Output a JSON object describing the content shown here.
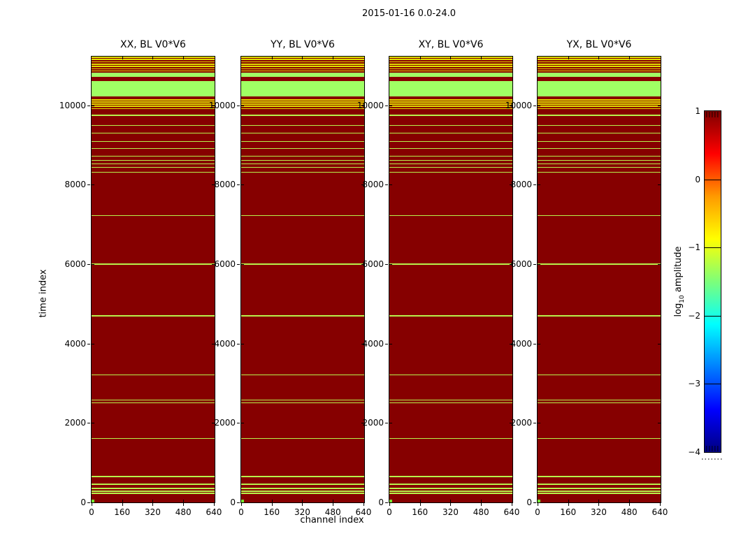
{
  "figure": {
    "title": "2015-01-16 0.0-24.0",
    "xlabel": "channel index",
    "ylabel": "time index"
  },
  "panels": [
    {
      "title": "XX, BL V0*V6"
    },
    {
      "title": "YY, BL V0*V6"
    },
    {
      "title": "XY, BL V0*V6"
    },
    {
      "title": "YX, BL V0*V6"
    }
  ],
  "colorbar": {
    "label_main": "log",
    "label_sub": "10",
    "label_rest": " amplitude"
  },
  "axes": {
    "x_tick_labels": [
      "0",
      "160",
      "320",
      "480",
      "640"
    ],
    "y_tick_labels": [
      "10000",
      "8000",
      "6000",
      "4000",
      "2000",
      "0"
    ],
    "cb_tick_labels": [
      "1",
      "0",
      "−1",
      "−2",
      "−3",
      "−4"
    ]
  },
  "chart_data": {
    "type": "heatmap",
    "title": "2015-01-16 0.0-24.0",
    "xlabel": "channel index",
    "ylabel": "time index",
    "xlim": [
      0,
      644
    ],
    "ylim": [
      0,
      11228
    ],
    "x_ticks": [
      0,
      160,
      320,
      480,
      640
    ],
    "y_ticks": [
      10000,
      8000,
      6000,
      4000,
      2000,
      0
    ],
    "colormap": "jet",
    "colorbar": {
      "label": "log10 amplitude",
      "ticks": [
        1,
        0,
        -1,
        -2,
        -3,
        -4
      ],
      "range": [
        -4,
        1
      ]
    },
    "panel_titles": [
      "XX, BL V0*V6",
      "YY, BL V0*V6",
      "XY, BL V0*V6",
      "YX, BL V0*V6"
    ],
    "note": "All four polarization panels show an identical pattern: saturated high amplitude (log10 amp ~1, dark red) across all 644 channels, broken by narrow low-amplitude horizontal time stripes listed below as [t_start, t_end, colorKey].",
    "colors": {
      "bg": "#860000",
      "y": "#dede00",
      "g": "#a0ff64",
      "l": "#b7f24c",
      "corner": "#76e232"
    },
    "stripes": [
      [
        11198,
        11228,
        "y"
      ],
      [
        11140,
        11170,
        "y"
      ],
      [
        11082,
        11112,
        "y"
      ],
      [
        11024,
        11054,
        "y"
      ],
      [
        10966,
        10996,
        "y"
      ],
      [
        10908,
        10938,
        "y"
      ],
      [
        10850,
        10880,
        "y"
      ],
      [
        10715,
        10820,
        "g"
      ],
      [
        10230,
        10610,
        "g"
      ],
      [
        10125,
        10155,
        "y"
      ],
      [
        10070,
        10100,
        "y"
      ],
      [
        10015,
        10045,
        "y"
      ],
      [
        9960,
        9990,
        "y"
      ],
      [
        9905,
        9935,
        "y"
      ],
      [
        9740,
        9768,
        "l"
      ],
      [
        9477,
        9505,
        "l"
      ],
      [
        9284,
        9312,
        "l"
      ],
      [
        9074,
        9102,
        "l"
      ],
      [
        8898,
        8926,
        "l"
      ],
      [
        8705,
        8733,
        "l"
      ],
      [
        8600,
        8628,
        "l"
      ],
      [
        8512,
        8540,
        "l"
      ],
      [
        8425,
        8453,
        "l"
      ],
      [
        8302,
        8330,
        "l"
      ],
      [
        7214,
        7242,
        "l"
      ],
      [
        5986,
        6014,
        "l"
      ],
      [
        4687,
        4715,
        "l"
      ],
      [
        3196,
        3224,
        "l"
      ],
      [
        2566,
        2594,
        "l"
      ],
      [
        2494,
        2522,
        "l"
      ],
      [
        1600,
        1628,
        "l"
      ],
      [
        635,
        663,
        "l"
      ],
      [
        442,
        470,
        "l"
      ],
      [
        337,
        365,
        "l"
      ],
      [
        267,
        295,
        "l"
      ],
      [
        214,
        242,
        "l"
      ]
    ],
    "corner_block": {
      "t": [
        0,
        70
      ],
      "channels": [
        0,
        14
      ],
      "colorKey": "corner"
    }
  }
}
